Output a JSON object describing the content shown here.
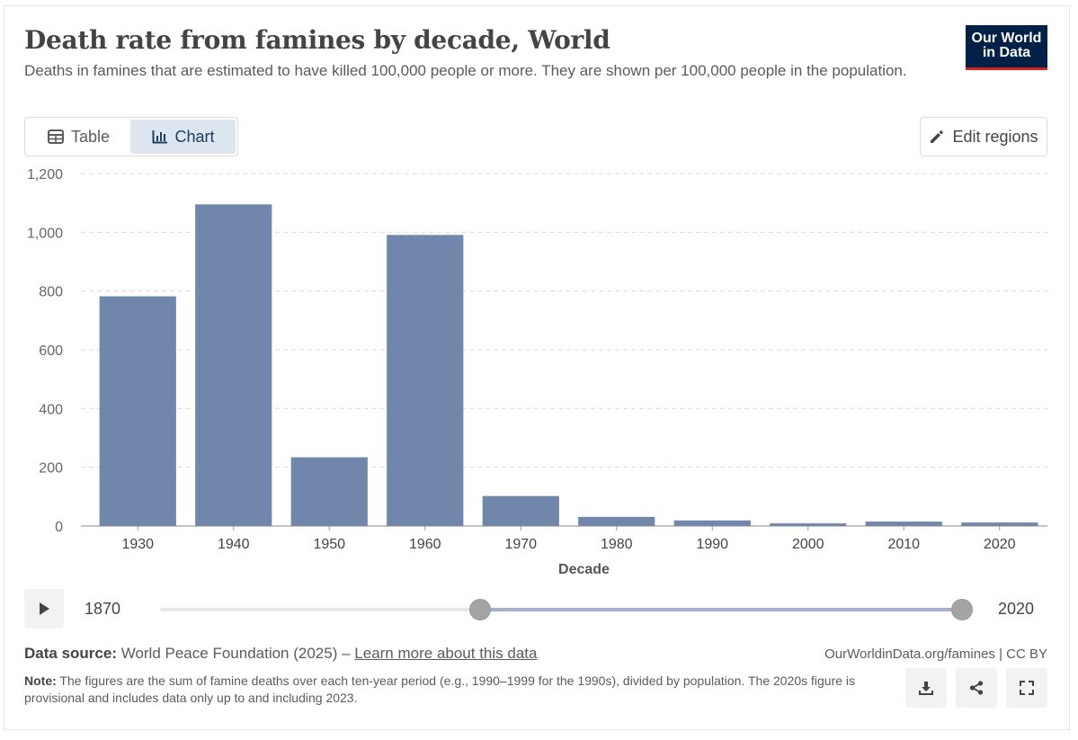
{
  "header": {
    "title": "Death rate from famines by decade, World",
    "subtitle": "Deaths in famines that are estimated to have killed 100,000 people or more. They are shown per 100,000 people in the population."
  },
  "logo": {
    "line1": "Our World",
    "line2": "in Data"
  },
  "tabs": {
    "table_label": "Table",
    "chart_label": "Chart"
  },
  "edit_regions_label": "Edit regions",
  "colors": {
    "bar": "#7087ab",
    "logo_bg": "#002147",
    "logo_accent": "#ce261e",
    "active_tab": "#dde5ef"
  },
  "chart_data": {
    "type": "bar",
    "title": "Death rate from famines by decade, World",
    "xlabel": "Decade",
    "ylabel": "",
    "ylim": [
      0,
      1200
    ],
    "yticks": [
      0,
      200,
      400,
      600,
      800,
      1000,
      1200
    ],
    "ytick_labels": [
      "0",
      "200",
      "400",
      "600",
      "800",
      "1,000",
      "1,200"
    ],
    "grid": true,
    "categories": [
      "1930",
      "1940",
      "1950",
      "1960",
      "1970",
      "1980",
      "1990",
      "2000",
      "2010",
      "2020"
    ],
    "values": [
      782,
      1095,
      234,
      991,
      102,
      31,
      19,
      9,
      15,
      12
    ]
  },
  "timeline": {
    "start_label": "1870",
    "end_label": "2020"
  },
  "footer": {
    "source_prefix": "Data source:",
    "source_text": " World Peace Foundation (2025) – ",
    "learn_more": "Learn more about this data",
    "credit": "OurWorldinData.org/famines | CC BY",
    "note_prefix": "Note:",
    "note_text": " The figures are the sum of famine deaths over each ten-year period (e.g., 1990–1999 for the 1990s), divided by population. The 2020s figure is provisional and includes data only up to and including 2023."
  }
}
